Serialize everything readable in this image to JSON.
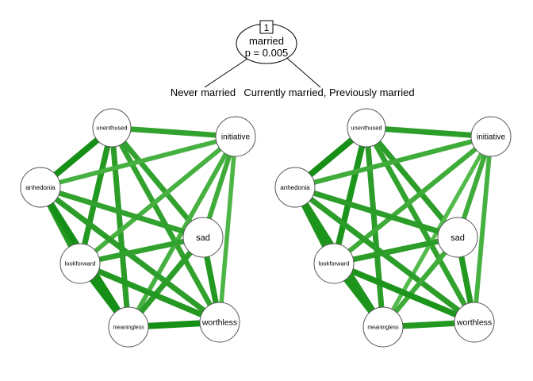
{
  "tree": {
    "node_id": "1",
    "variable": "married",
    "p_value": "p = 0.005",
    "branch_left": "Never married",
    "branch_right": "Currently married, Previously married"
  },
  "nodes": [
    {
      "id": "unenthused",
      "label": "unenthused"
    },
    {
      "id": "initiative",
      "label": "initiative"
    },
    {
      "id": "anhedonia",
      "label": "anhedonia"
    },
    {
      "id": "sad",
      "label": "sad"
    },
    {
      "id": "lookforward",
      "label": "lookforward"
    },
    {
      "id": "meaningless",
      "label": "meaningless"
    },
    {
      "id": "worthless",
      "label": "worthless"
    }
  ],
  "networks": [
    {
      "edges": [
        {
          "from": "unenthused",
          "to": "initiative",
          "weight": 0.7
        },
        {
          "from": "unenthused",
          "to": "anhedonia",
          "weight": 0.9
        },
        {
          "from": "unenthused",
          "to": "sad",
          "weight": 0.7
        },
        {
          "from": "unenthused",
          "to": "lookforward",
          "weight": 0.8
        },
        {
          "from": "unenthused",
          "to": "meaningless",
          "weight": 0.75
        },
        {
          "from": "unenthused",
          "to": "worthless",
          "weight": 0.7
        },
        {
          "from": "initiative",
          "to": "anhedonia",
          "weight": 0.55
        },
        {
          "from": "initiative",
          "to": "sad",
          "weight": 0.6
        },
        {
          "from": "initiative",
          "to": "lookforward",
          "weight": 0.55
        },
        {
          "from": "initiative",
          "to": "meaningless",
          "weight": 0.55
        },
        {
          "from": "initiative",
          "to": "worthless",
          "weight": 0.5
        },
        {
          "from": "anhedonia",
          "to": "sad",
          "weight": 0.7
        },
        {
          "from": "anhedonia",
          "to": "lookforward",
          "weight": 0.8
        },
        {
          "from": "anhedonia",
          "to": "meaningless",
          "weight": 0.9
        },
        {
          "from": "anhedonia",
          "to": "worthless",
          "weight": 0.75
        },
        {
          "from": "sad",
          "to": "lookforward",
          "weight": 0.7
        },
        {
          "from": "sad",
          "to": "meaningless",
          "weight": 0.75
        },
        {
          "from": "sad",
          "to": "worthless",
          "weight": 0.8
        },
        {
          "from": "lookforward",
          "to": "meaningless",
          "weight": 0.9
        },
        {
          "from": "lookforward",
          "to": "worthless",
          "weight": 0.8
        },
        {
          "from": "meaningless",
          "to": "worthless",
          "weight": 0.9
        }
      ]
    },
    {
      "edges": [
        {
          "from": "unenthused",
          "to": "initiative",
          "weight": 0.75
        },
        {
          "from": "unenthused",
          "to": "anhedonia",
          "weight": 0.9
        },
        {
          "from": "unenthused",
          "to": "sad",
          "weight": 0.75
        },
        {
          "from": "unenthused",
          "to": "lookforward",
          "weight": 0.85
        },
        {
          "from": "unenthused",
          "to": "meaningless",
          "weight": 0.75
        },
        {
          "from": "unenthused",
          "to": "worthless",
          "weight": 0.7
        },
        {
          "from": "initiative",
          "to": "anhedonia",
          "weight": 0.6
        },
        {
          "from": "initiative",
          "to": "sad",
          "weight": 0.6
        },
        {
          "from": "initiative",
          "to": "lookforward",
          "weight": 0.6
        },
        {
          "from": "initiative",
          "to": "meaningless",
          "weight": 0.45
        },
        {
          "from": "initiative",
          "to": "worthless",
          "weight": 0.55
        },
        {
          "from": "anhedonia",
          "to": "sad",
          "weight": 0.75
        },
        {
          "from": "anhedonia",
          "to": "lookforward",
          "weight": 0.85
        },
        {
          "from": "anhedonia",
          "to": "meaningless",
          "weight": 0.85
        },
        {
          "from": "anhedonia",
          "to": "worthless",
          "weight": 0.75
        },
        {
          "from": "sad",
          "to": "lookforward",
          "weight": 0.75
        },
        {
          "from": "sad",
          "to": "meaningless",
          "weight": 0.6
        },
        {
          "from": "sad",
          "to": "worthless",
          "weight": 0.8
        },
        {
          "from": "lookforward",
          "to": "meaningless",
          "weight": 0.85
        },
        {
          "from": "lookforward",
          "to": "worthless",
          "weight": 0.85
        },
        {
          "from": "meaningless",
          "to": "worthless",
          "weight": 0.8
        }
      ]
    }
  ],
  "colors": {
    "edge_strong": "#168f16",
    "edge_weak": "#5bbf52",
    "node_fill": "#ffffff",
    "node_stroke": "#555555",
    "tree_line": "#000000"
  }
}
